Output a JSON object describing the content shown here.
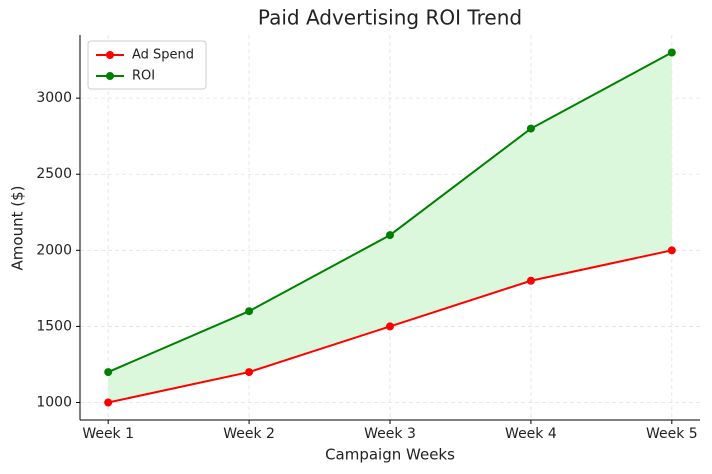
{
  "chart_data": {
    "type": "line",
    "title": "Paid Advertising ROI Trend",
    "x_label": "Campaign Weeks",
    "y_label": "Amount ($)",
    "categories": [
      "Week 1",
      "Week 2",
      "Week 3",
      "Week 4",
      "Week 5"
    ],
    "series": [
      {
        "name": "Ad Spend",
        "color": "#ff0000",
        "values": [
          1000,
          1200,
          1500,
          1800,
          2000
        ]
      },
      {
        "name": "ROI",
        "color": "#008000",
        "values": [
          1200,
          1600,
          2100,
          2800,
          3300
        ]
      }
    ],
    "fill_between": true,
    "fill_color": "#dcf8dc",
    "ylim": [
      885,
      3415
    ],
    "yticks": [
      1000,
      1500,
      2000,
      2500,
      3000
    ],
    "grid": true,
    "legend": "upper left"
  }
}
